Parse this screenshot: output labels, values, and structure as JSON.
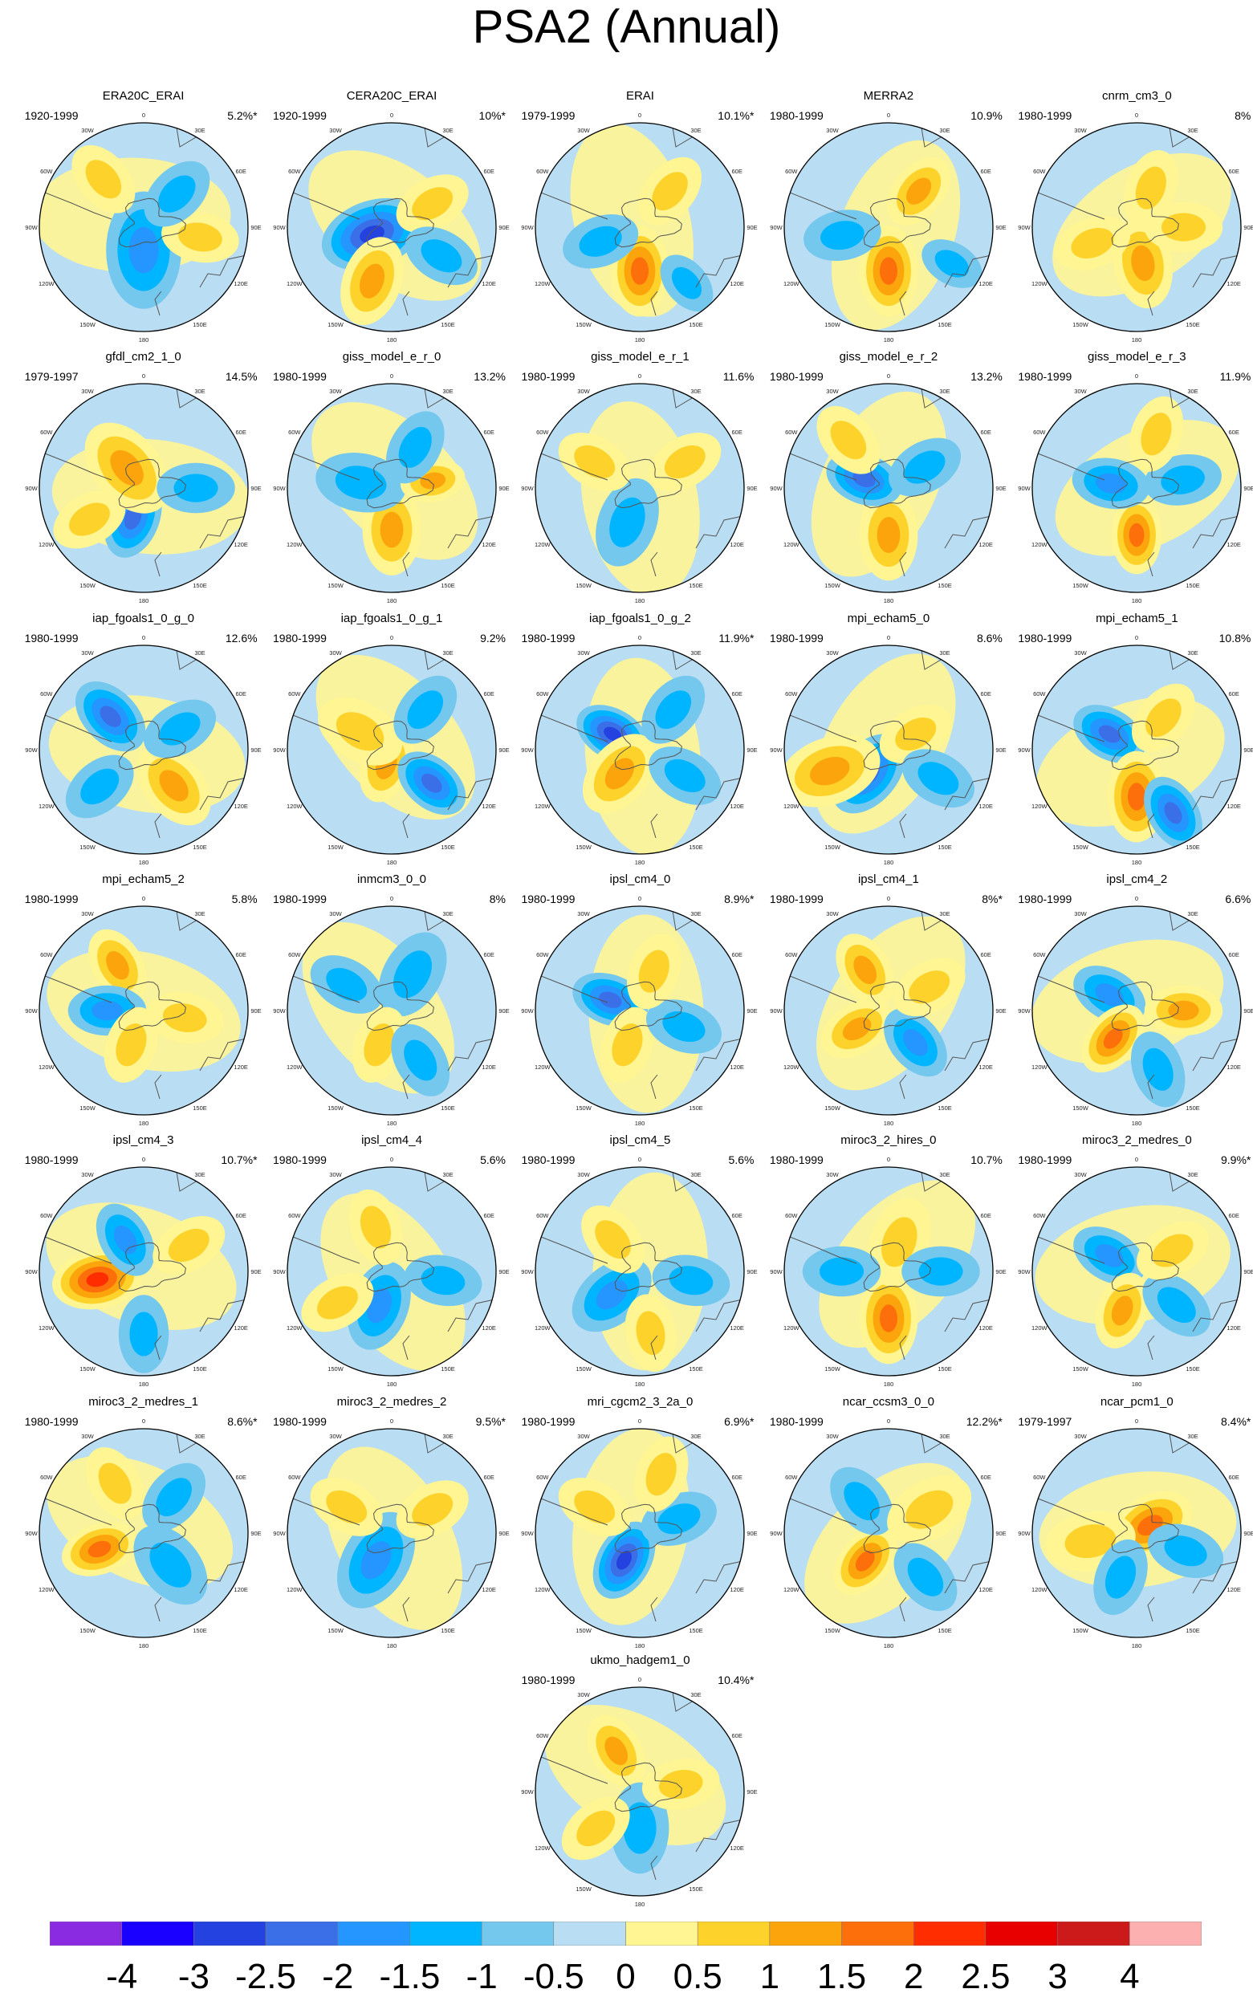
{
  "title": "PSA2 (Annual)",
  "chart_data": {
    "type": "heatmap",
    "projection": "south polar stereographic",
    "longitude_labels": [
      "0",
      "30E",
      "60E",
      "90E",
      "120E",
      "150E",
      "180",
      "150W",
      "120W",
      "90W",
      "60W",
      "30W"
    ],
    "colorbar": {
      "levels": [
        "-4",
        "-3",
        "-2.5",
        "-2",
        "-1.5",
        "-1",
        "-0.5",
        "0",
        "0.5",
        "1",
        "1.5",
        "2",
        "2.5",
        "3",
        "4"
      ],
      "colors": [
        "#8a2be2",
        "#1a00ff",
        "#2342e0",
        "#3a6fe8",
        "#2596ff",
        "#00b5ff",
        "#74c8ee",
        "#b9ddf2",
        "#fff592",
        "#fdd32b",
        "#fca40c",
        "#fc6f0a",
        "#ff2d00",
        "#e80000",
        "#cc1a1a",
        "#fcb0b0"
      ]
    },
    "panels": [
      {
        "name": "ERA20C_ERAI",
        "years": "1920-1999",
        "percent": "5.2%*"
      },
      {
        "name": "CERA20C_ERAI",
        "years": "1920-1999",
        "percent": "10%*"
      },
      {
        "name": "ERAI",
        "years": "1979-1999",
        "percent": "10.1%*"
      },
      {
        "name": "MERRA2",
        "years": "1980-1999",
        "percent": "10.9%"
      },
      {
        "name": "cnrm_cm3_0",
        "years": "1980-1999",
        "percent": "8%"
      },
      {
        "name": "gfdl_cm2_1_0",
        "years": "1979-1997",
        "percent": "14.5%"
      },
      {
        "name": "giss_model_e_r_0",
        "years": "1980-1999",
        "percent": "13.2%"
      },
      {
        "name": "giss_model_e_r_1",
        "years": "1980-1999",
        "percent": "11.6%"
      },
      {
        "name": "giss_model_e_r_2",
        "years": "1980-1999",
        "percent": "13.2%"
      },
      {
        "name": "giss_model_e_r_3",
        "years": "1980-1999",
        "percent": "11.9%"
      },
      {
        "name": "iap_fgoals1_0_g_0",
        "years": "1980-1999",
        "percent": "12.6%"
      },
      {
        "name": "iap_fgoals1_0_g_1",
        "years": "1980-1999",
        "percent": "9.2%"
      },
      {
        "name": "iap_fgoals1_0_g_2",
        "years": "1980-1999",
        "percent": "11.9%*"
      },
      {
        "name": "mpi_echam5_0",
        "years": "1980-1999",
        "percent": "8.6%"
      },
      {
        "name": "mpi_echam5_1",
        "years": "1980-1999",
        "percent": "10.8%"
      },
      {
        "name": "mpi_echam5_2",
        "years": "1980-1999",
        "percent": "5.8%"
      },
      {
        "name": "inmcm3_0_0",
        "years": "1980-1999",
        "percent": "8%"
      },
      {
        "name": "ipsl_cm4_0",
        "years": "1980-1999",
        "percent": "8.9%*"
      },
      {
        "name": "ipsl_cm4_1",
        "years": "1980-1999",
        "percent": "8%*"
      },
      {
        "name": "ipsl_cm4_2",
        "years": "1980-1999",
        "percent": "6.6%"
      },
      {
        "name": "ipsl_cm4_3",
        "years": "1980-1999",
        "percent": "10.7%*"
      },
      {
        "name": "ipsl_cm4_4",
        "years": "1980-1999",
        "percent": "5.6%"
      },
      {
        "name": "ipsl_cm4_5",
        "years": "1980-1999",
        "percent": "5.6%"
      },
      {
        "name": "miroc3_2_hires_0",
        "years": "1980-1999",
        "percent": "10.7%"
      },
      {
        "name": "miroc3_2_medres_0",
        "years": "1980-1999",
        "percent": "9.9%*"
      },
      {
        "name": "miroc3_2_medres_1",
        "years": "1980-1999",
        "percent": "8.6%*"
      },
      {
        "name": "miroc3_2_medres_2",
        "years": "1980-1999",
        "percent": "9.5%*"
      },
      {
        "name": "mri_cgcm2_3_2a_0",
        "years": "1980-1999",
        "percent": "6.9%*"
      },
      {
        "name": "ncar_ccsm3_0_0",
        "years": "1980-1999",
        "percent": "12.2%*"
      },
      {
        "name": "ncar_pcm1_0",
        "years": "1979-1997",
        "percent": "8.4%*"
      },
      {
        "name": "ukmo_hadgem1_0",
        "years": "1980-1999",
        "percent": "10.4%*"
      }
    ]
  }
}
